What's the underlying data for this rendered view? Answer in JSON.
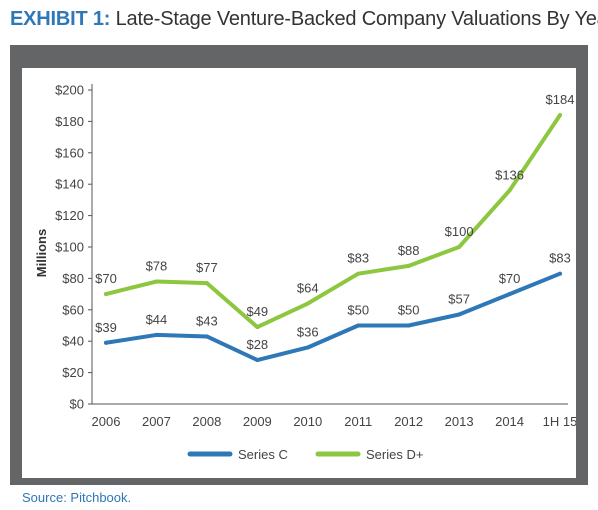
{
  "title": {
    "prefix": "EXHIBIT 1:",
    "text": "Late-Stage Venture-Backed Company Valuations By Year"
  },
  "source": "Source: Pitchbook.",
  "colors": {
    "series_c": "#2e78b7",
    "series_d": "#8dc63f",
    "frame": "#636567",
    "accent": "#2f77b7"
  },
  "chart_data": {
    "type": "line",
    "title": "Late-Stage Venture-Backed Company Valuations By Year",
    "xlabel": "",
    "ylabel": "Millions",
    "categories": [
      "2006",
      "2007",
      "2008",
      "2009",
      "2010",
      "2011",
      "2012",
      "2013",
      "2014",
      "1H 15"
    ],
    "y_ticks": [
      "$0",
      "$20",
      "$40",
      "$60",
      "$80",
      "$100",
      "$120",
      "$140",
      "$160",
      "$180",
      "$200"
    ],
    "ylim": [
      0,
      200
    ],
    "grid": false,
    "legend": "bottom",
    "series": [
      {
        "name": "Series C",
        "values": [
          39,
          44,
          43,
          28,
          36,
          50,
          50,
          57,
          70,
          83
        ],
        "labels": [
          "$39",
          "$44",
          "$43",
          "$28",
          "$36",
          "$50",
          "$50",
          "$57",
          "$70",
          "$83"
        ]
      },
      {
        "name": "Series D+",
        "values": [
          70,
          78,
          77,
          49,
          64,
          83,
          88,
          100,
          136,
          184
        ],
        "labels": [
          "$70",
          "$78",
          "$77",
          "$49",
          "$64",
          "$83",
          "$88",
          "$100",
          "$136",
          "$184"
        ]
      }
    ]
  }
}
